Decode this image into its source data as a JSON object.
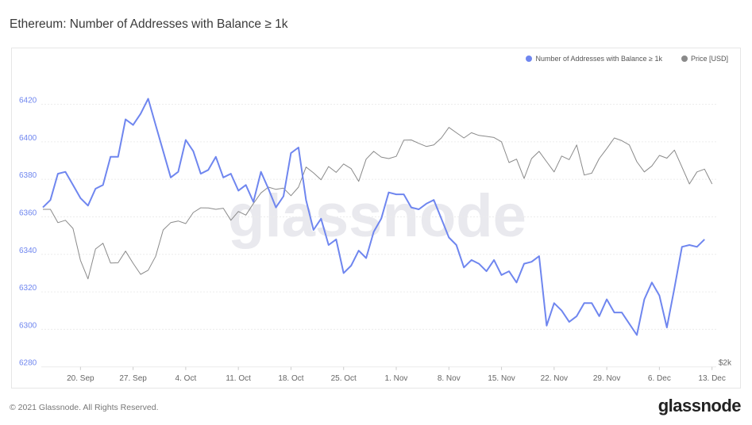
{
  "title": "Ethereum: Number of Addresses with Balance ≥ 1k",
  "footer": "© 2021 Glassnode. All Rights Reserved.",
  "logo_text": "glassnode",
  "watermark_text": "glassnode",
  "legend": [
    {
      "label": "Number of Addresses with Balance ≥ 1k",
      "color": "#6f86ef"
    },
    {
      "label": "Price [USD]",
      "color": "#8a8a8a"
    }
  ],
  "chart_data": {
    "type": "line",
    "title": "Ethereum: Number of Addresses with Balance ≥ 1k",
    "grid": true,
    "legend_position": "top-right",
    "x_ticks": [
      {
        "date": "2021-09-20",
        "label": "20. Sep"
      },
      {
        "date": "2021-09-27",
        "label": "27. Sep"
      },
      {
        "date": "2021-10-04",
        "label": "4. Oct"
      },
      {
        "date": "2021-10-11",
        "label": "11. Oct"
      },
      {
        "date": "2021-10-18",
        "label": "18. Oct"
      },
      {
        "date": "2021-10-25",
        "label": "25. Oct"
      },
      {
        "date": "2021-11-01",
        "label": "1. Nov"
      },
      {
        "date": "2021-11-08",
        "label": "8. Nov"
      },
      {
        "date": "2021-11-15",
        "label": "15. Nov"
      },
      {
        "date": "2021-11-22",
        "label": "22. Nov"
      },
      {
        "date": "2021-11-29",
        "label": "29. Nov"
      },
      {
        "date": "2021-12-06",
        "label": "6. Dec"
      },
      {
        "date": "2021-12-13",
        "label": "13. Dec"
      }
    ],
    "left_axis": {
      "ylim": [
        6280,
        6427
      ],
      "ticks": [
        6280,
        6300,
        6320,
        6340,
        6360,
        6380,
        6400,
        6420
      ],
      "color": "#6f86ef"
    },
    "right_axis": {
      "scale": "log",
      "ylim": [
        2000,
        5480
      ],
      "tick_labels": [
        {
          "value": 2000,
          "label": "$2k"
        }
      ]
    },
    "x": [
      "2021-09-15",
      "2021-09-16",
      "2021-09-17",
      "2021-09-18",
      "2021-09-19",
      "2021-09-20",
      "2021-09-21",
      "2021-09-22",
      "2021-09-23",
      "2021-09-24",
      "2021-09-25",
      "2021-09-26",
      "2021-09-27",
      "2021-09-28",
      "2021-09-29",
      "2021-09-30",
      "2021-10-01",
      "2021-10-02",
      "2021-10-03",
      "2021-10-04",
      "2021-10-05",
      "2021-10-06",
      "2021-10-07",
      "2021-10-08",
      "2021-10-09",
      "2021-10-10",
      "2021-10-11",
      "2021-10-12",
      "2021-10-13",
      "2021-10-14",
      "2021-10-15",
      "2021-10-16",
      "2021-10-17",
      "2021-10-18",
      "2021-10-19",
      "2021-10-20",
      "2021-10-21",
      "2021-10-22",
      "2021-10-23",
      "2021-10-24",
      "2021-10-25",
      "2021-10-26",
      "2021-10-27",
      "2021-10-28",
      "2021-10-29",
      "2021-10-30",
      "2021-10-31",
      "2021-11-01",
      "2021-11-02",
      "2021-11-03",
      "2021-11-04",
      "2021-11-05",
      "2021-11-06",
      "2021-11-07",
      "2021-11-08",
      "2021-11-09",
      "2021-11-10",
      "2021-11-11",
      "2021-11-12",
      "2021-11-13",
      "2021-11-14",
      "2021-11-15",
      "2021-11-16",
      "2021-11-17",
      "2021-11-18",
      "2021-11-19",
      "2021-11-20",
      "2021-11-21",
      "2021-11-22",
      "2021-11-23",
      "2021-11-24",
      "2021-11-25",
      "2021-11-26",
      "2021-11-27",
      "2021-11-28",
      "2021-11-29",
      "2021-11-30",
      "2021-12-01",
      "2021-12-02",
      "2021-12-03",
      "2021-12-04",
      "2021-12-05",
      "2021-12-06",
      "2021-12-07",
      "2021-12-08",
      "2021-12-09",
      "2021-12-10",
      "2021-12-11",
      "2021-12-12",
      "2021-12-13"
    ],
    "series": [
      {
        "name": "Number of Addresses with Balance ≥ 1k",
        "axis": "left",
        "color": "#6f86ef",
        "values": [
          6365,
          6369,
          6383,
          6384,
          6377,
          6370,
          6366,
          6375,
          6377,
          6392,
          6392,
          6412,
          6409,
          6415,
          6423,
          6409,
          6395,
          6381,
          6384,
          6401,
          6395,
          6383,
          6385,
          6392,
          6381,
          6383,
          6374,
          6377,
          6368,
          6384,
          6375,
          6365,
          6371,
          6394,
          6397,
          6369,
          6353,
          6359,
          6345,
          6348,
          6330,
          6334,
          6342,
          6338,
          6352,
          6359,
          6373,
          6372,
          6372,
          6365,
          6364,
          6367,
          6369,
          6359,
          6349,
          6345,
          6333,
          6337,
          6335,
          6331,
          6337,
          6329,
          6331,
          6325,
          6335,
          6336,
          6339,
          6302,
          6314,
          6310,
          6304,
          6307,
          6314,
          6314,
          6307,
          6316,
          6309,
          6309,
          6303,
          6297,
          6316,
          6325,
          6318,
          6301,
          6322,
          6344,
          6345,
          6344,
          6348,
          null
        ]
      },
      {
        "name": "Price [USD]",
        "axis": "right",
        "color": "#8a8a8a",
        "values": [
          3558,
          3558,
          3389,
          3418,
          3318,
          2953,
          2759,
          3078,
          3143,
          2924,
          2926,
          3054,
          2921,
          2805,
          2848,
          2996,
          3300,
          3389,
          3409,
          3377,
          3517,
          3578,
          3576,
          3558,
          3572,
          3418,
          3530,
          3483,
          3634,
          3778,
          3859,
          3828,
          3844,
          3740,
          3859,
          4152,
          4065,
          3964,
          4161,
          4073,
          4200,
          4128,
          3941,
          4274,
          4398,
          4307,
          4283,
          4318,
          4582,
          4585,
          4528,
          4477,
          4502,
          4618,
          4800,
          4708,
          4618,
          4708,
          4662,
          4645,
          4627,
          4555,
          4221,
          4274,
          3983,
          4283,
          4398,
          4234,
          4080,
          4323,
          4267,
          4502,
          4033,
          4061,
          4283,
          4443,
          4618,
          4573,
          4502,
          4234,
          4080,
          4169,
          4333,
          4290,
          4418,
          4152,
          3904,
          4080,
          4121,
          3904
        ]
      }
    ]
  }
}
